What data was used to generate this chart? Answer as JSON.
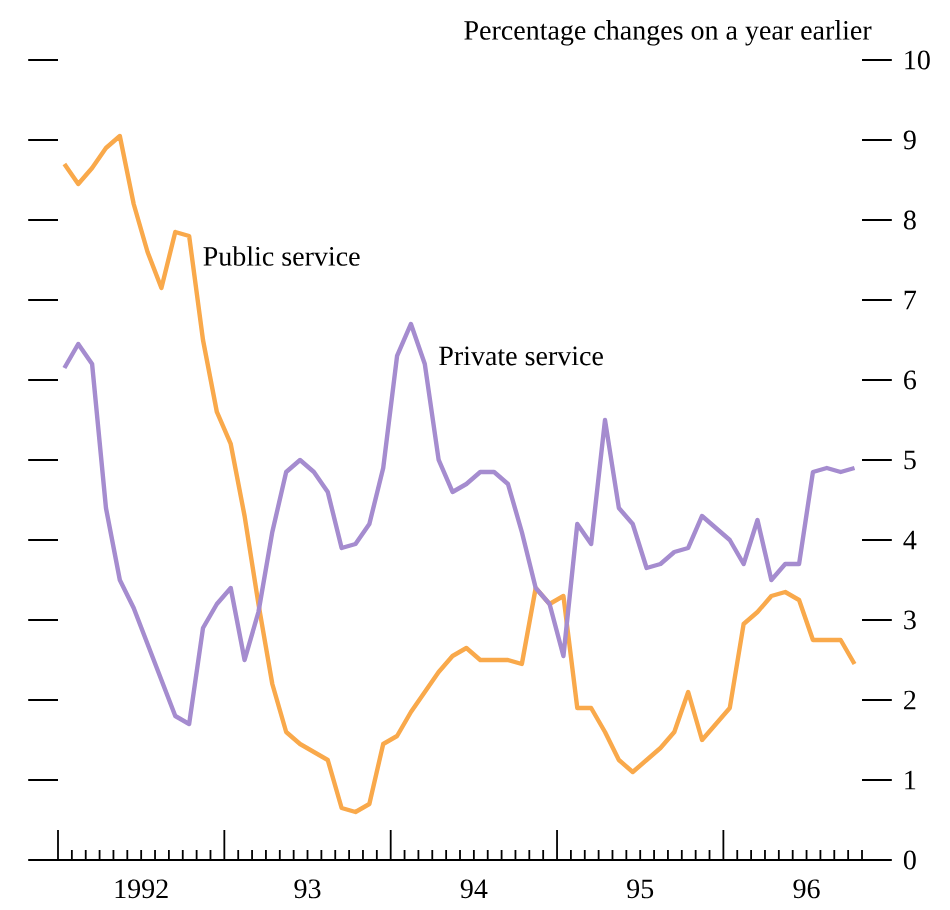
{
  "chart_data": {
    "type": "line",
    "ylabel": "Percentage changes on a year earlier",
    "x": [
      "1992-01-15",
      "1992-02-15",
      "1992-03-15",
      "1992-04-15",
      "1992-05-15",
      "1992-06-15",
      "1992-07-15",
      "1992-08-15",
      "1992-09-15",
      "1992-10-15",
      "1992-11-15",
      "1992-12-15",
      "1993-01-15",
      "1993-02-15",
      "1993-03-15",
      "1993-04-15",
      "1993-05-15",
      "1993-06-15",
      "1993-07-15",
      "1993-08-15",
      "1993-09-15",
      "1993-10-15",
      "1993-11-15",
      "1993-12-15",
      "1994-01-15",
      "1994-02-15",
      "1994-03-15",
      "1994-04-15",
      "1994-05-15",
      "1994-06-15",
      "1994-07-15",
      "1994-08-15",
      "1994-09-15",
      "1994-10-15",
      "1994-11-15",
      "1994-12-15",
      "1995-01-15",
      "1995-02-15",
      "1995-03-15",
      "1995-04-15",
      "1995-05-15",
      "1995-06-15",
      "1995-07-15",
      "1995-08-15",
      "1995-09-15",
      "1995-10-15",
      "1995-11-15",
      "1995-12-15",
      "1996-01-15",
      "1996-02-15",
      "1996-03-15",
      "1996-04-15",
      "1996-05-15",
      "1996-06-15",
      "1996-07-15",
      "1996-08-15",
      "1996-09-15",
      "1996-10-15"
    ],
    "series": [
      {
        "name": "Public service",
        "color": "#f9a94b",
        "values": [
          8.7,
          8.45,
          8.65,
          8.9,
          9.05,
          8.2,
          7.6,
          7.15,
          7.85,
          7.8,
          6.5,
          5.6,
          5.2,
          4.3,
          3.2,
          2.2,
          1.6,
          1.45,
          1.35,
          1.25,
          0.65,
          0.6,
          0.7,
          1.45,
          1.55,
          1.85,
          2.1,
          2.35,
          2.55,
          2.65,
          2.5,
          2.5,
          2.5,
          2.45,
          3.4,
          3.2,
          3.3,
          1.9,
          1.9,
          1.6,
          1.25,
          1.1,
          1.25,
          1.4,
          1.6,
          2.1,
          1.5,
          1.7,
          1.9,
          2.95,
          3.1,
          3.3,
          3.35,
          3.25,
          2.75,
          2.75,
          2.75,
          2.45
        ]
      },
      {
        "name": "Private service",
        "color": "#a58ccf",
        "values": [
          6.15,
          6.45,
          6.2,
          4.4,
          3.5,
          3.15,
          2.7,
          2.25,
          1.8,
          1.7,
          2.9,
          3.2,
          3.4,
          2.5,
          3.1,
          4.1,
          4.85,
          5.0,
          4.85,
          4.6,
          3.9,
          3.95,
          4.2,
          4.9,
          6.3,
          6.7,
          6.2,
          5.0,
          4.6,
          4.7,
          4.85,
          4.85,
          4.7,
          4.1,
          3.4,
          3.2,
          2.55,
          4.2,
          3.95,
          5.5,
          4.4,
          4.2,
          3.65,
          3.7,
          3.85,
          3.9,
          4.3,
          4.15,
          4.0,
          3.7,
          4.25,
          3.5,
          3.7,
          3.7,
          4.85,
          4.9,
          4.85,
          4.9
        ]
      }
    ],
    "xlim": [
      "1992-01-01",
      "1996-11-01"
    ],
    "xticks": [
      {
        "value": "1992-07-01",
        "label": "1992"
      },
      {
        "value": "1993-07-01",
        "label": "93"
      },
      {
        "value": "1994-07-01",
        "label": "94"
      },
      {
        "value": "1995-07-01",
        "label": "95"
      },
      {
        "value": "1996-07-01",
        "label": "96"
      },
      {
        "value": "1992-01-01",
        "label": null
      },
      {
        "value": "1992-02-01",
        "label": null
      },
      {
        "value": "1992-03-01",
        "label": null
      },
      {
        "value": "1992-04-01",
        "label": null
      },
      {
        "value": "1992-05-01",
        "label": null
      },
      {
        "value": "1992-06-01",
        "label": null
      },
      {
        "value": "1992-07-01",
        "label": null
      },
      {
        "value": "1992-08-01",
        "label": null
      },
      {
        "value": "1992-09-01",
        "label": null
      },
      {
        "value": "1992-10-01",
        "label": null
      },
      {
        "value": "1992-11-01",
        "label": null
      },
      {
        "value": "1992-12-01",
        "label": null
      },
      {
        "value": "1993-01-01",
        "label": null
      },
      {
        "value": "1993-02-01",
        "label": null
      },
      {
        "value": "1993-03-01",
        "label": null
      },
      {
        "value": "1993-04-01",
        "label": null
      },
      {
        "value": "1993-05-01",
        "label": null
      },
      {
        "value": "1993-06-01",
        "label": null
      },
      {
        "value": "1993-07-01",
        "label": null
      },
      {
        "value": "1993-08-01",
        "label": null
      },
      {
        "value": "1993-09-01",
        "label": null
      },
      {
        "value": "1993-10-01",
        "label": null
      },
      {
        "value": "1993-11-01",
        "label": null
      },
      {
        "value": "1993-12-01",
        "label": null
      },
      {
        "value": "1994-01-01",
        "label": null
      },
      {
        "value": "1994-02-01",
        "label": null
      },
      {
        "value": "1994-03-01",
        "label": null
      },
      {
        "value": "1994-04-01",
        "label": null
      },
      {
        "value": "1994-05-01",
        "label": null
      },
      {
        "value": "1994-06-01",
        "label": null
      },
      {
        "value": "1994-07-01",
        "label": null
      },
      {
        "value": "1994-08-01",
        "label": null
      },
      {
        "value": "1994-09-01",
        "label": null
      },
      {
        "value": "1994-10-01",
        "label": null
      },
      {
        "value": "1994-11-01",
        "label": null
      },
      {
        "value": "1994-12-01",
        "label": null
      },
      {
        "value": "1995-01-01",
        "label": null
      },
      {
        "value": "1995-02-01",
        "label": null
      },
      {
        "value": "1995-03-01",
        "label": null
      },
      {
        "value": "1995-04-01",
        "label": null
      },
      {
        "value": "1995-05-01",
        "label": null
      },
      {
        "value": "1995-06-01",
        "label": null
      },
      {
        "value": "1995-07-01",
        "label": null
      },
      {
        "value": "1995-08-01",
        "label": null
      },
      {
        "value": "1995-09-01",
        "label": null
      },
      {
        "value": "1995-10-01",
        "label": null
      },
      {
        "value": "1995-11-01",
        "label": null
      },
      {
        "value": "1995-12-01",
        "label": null
      },
      {
        "value": "1996-01-01",
        "label": null
      },
      {
        "value": "1996-02-01",
        "label": null
      },
      {
        "value": "1996-03-01",
        "label": null
      },
      {
        "value": "1996-04-01",
        "label": null
      },
      {
        "value": "1996-05-01",
        "label": null
      },
      {
        "value": "1996-06-01",
        "label": null
      },
      {
        "value": "1996-07-01",
        "label": null
      },
      {
        "value": "1996-08-01",
        "label": null
      },
      {
        "value": "1996-09-01",
        "label": null
      },
      {
        "value": "1996-10-01",
        "label": null
      },
      {
        "value": "1996-11-01",
        "label": null
      }
    ],
    "ylim": [
      0,
      10
    ],
    "yticks": [
      0,
      1,
      2,
      3,
      4,
      5,
      6,
      7,
      8,
      9,
      10
    ],
    "line_style": "solid"
  }
}
